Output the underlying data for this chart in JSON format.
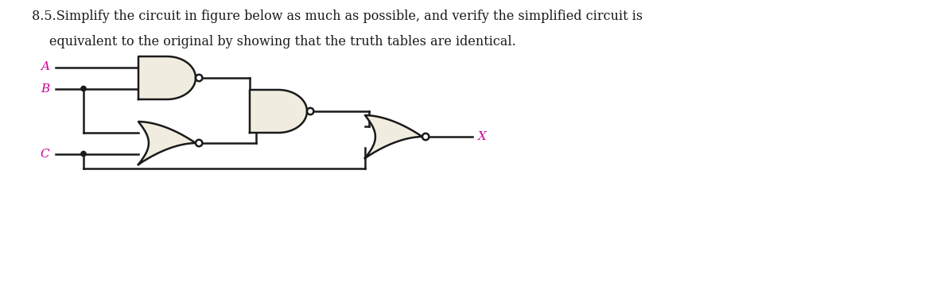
{
  "text_line1": "8.5.Simplify the circuit in figure below as much as possible, and verify the simplified circuit is",
  "text_line2": "equivalent to the original by showing that the truth tables are identical.",
  "text_color": "#1a1a1a",
  "label_color": "#cc0099",
  "gate_fill": "#f0ede0",
  "gate_edge": "#1a1a1a",
  "wire_color": "#1a1a1a",
  "bubble_fill": "#ffffff",
  "label_A": "A",
  "label_B": "B",
  "label_C": "C",
  "label_X": "X",
  "lw": 1.8,
  "bub_r": 0.042
}
